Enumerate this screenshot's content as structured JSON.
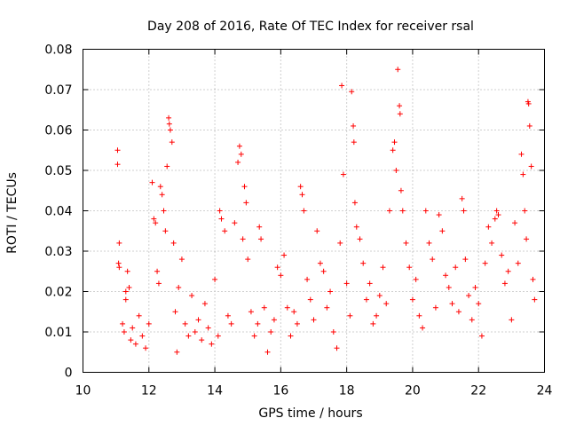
{
  "chart_data": {
    "type": "scatter",
    "title": "Day 208 of 2016, Rate Of TEC Index for receiver rsal",
    "xlabel": "GPS time / hours",
    "ylabel": "ROTI / TECUs",
    "xlim": [
      10,
      24
    ],
    "ylim": [
      0,
      0.08
    ],
    "x_ticks": [
      10,
      12,
      14,
      16,
      18,
      20,
      22,
      24
    ],
    "y_ticks": [
      0,
      0.01,
      0.02,
      0.03,
      0.04,
      0.05,
      0.06,
      0.07,
      0.08
    ],
    "x_tick_labels": [
      "10",
      "12",
      "14",
      "16",
      "18",
      "20",
      "22",
      "24"
    ],
    "y_tick_labels": [
      "0",
      "0.01",
      "0.02",
      "0.03",
      "0.04",
      "0.05",
      "0.06",
      "0.07",
      "0.08"
    ],
    "grid": true,
    "marker": "+",
    "color": "#ff0000",
    "series": [
      {
        "name": "ROTI",
        "points": [
          [
            11.05,
            0.055
          ],
          [
            11.05,
            0.0515
          ],
          [
            11.1,
            0.032
          ],
          [
            11.08,
            0.027
          ],
          [
            11.1,
            0.026
          ],
          [
            11.2,
            0.012
          ],
          [
            11.25,
            0.01
          ],
          [
            11.3,
            0.02
          ],
          [
            11.35,
            0.025
          ],
          [
            11.3,
            0.018
          ],
          [
            11.4,
            0.021
          ],
          [
            11.45,
            0.008
          ],
          [
            11.5,
            0.011
          ],
          [
            11.6,
            0.007
          ],
          [
            11.7,
            0.014
          ],
          [
            11.8,
            0.009
          ],
          [
            11.9,
            0.006
          ],
          [
            12.0,
            0.012
          ],
          [
            12.1,
            0.047
          ],
          [
            12.15,
            0.038
          ],
          [
            12.2,
            0.037
          ],
          [
            12.25,
            0.025
          ],
          [
            12.3,
            0.022
          ],
          [
            12.35,
            0.046
          ],
          [
            12.4,
            0.044
          ],
          [
            12.45,
            0.04
          ],
          [
            12.5,
            0.035
          ],
          [
            12.55,
            0.051
          ],
          [
            12.6,
            0.063
          ],
          [
            12.62,
            0.0615
          ],
          [
            12.65,
            0.06
          ],
          [
            12.7,
            0.057
          ],
          [
            12.75,
            0.032
          ],
          [
            12.8,
            0.015
          ],
          [
            12.85,
            0.005
          ],
          [
            12.9,
            0.021
          ],
          [
            13.0,
            0.028
          ],
          [
            13.1,
            0.012
          ],
          [
            13.2,
            0.009
          ],
          [
            13.3,
            0.019
          ],
          [
            13.4,
            0.01
          ],
          [
            13.5,
            0.013
          ],
          [
            13.6,
            0.008
          ],
          [
            13.7,
            0.017
          ],
          [
            13.8,
            0.011
          ],
          [
            13.9,
            0.007
          ],
          [
            14.0,
            0.023
          ],
          [
            14.1,
            0.009
          ],
          [
            14.15,
            0.04
          ],
          [
            14.2,
            0.038
          ],
          [
            14.3,
            0.035
          ],
          [
            14.4,
            0.014
          ],
          [
            14.5,
            0.012
          ],
          [
            14.6,
            0.037
          ],
          [
            14.7,
            0.052
          ],
          [
            14.75,
            0.056
          ],
          [
            14.8,
            0.054
          ],
          [
            14.85,
            0.033
          ],
          [
            14.9,
            0.046
          ],
          [
            14.95,
            0.042
          ],
          [
            15.0,
            0.028
          ],
          [
            15.1,
            0.015
          ],
          [
            15.2,
            0.009
          ],
          [
            15.3,
            0.012
          ],
          [
            15.35,
            0.036
          ],
          [
            15.4,
            0.033
          ],
          [
            15.5,
            0.016
          ],
          [
            15.6,
            0.005
          ],
          [
            15.7,
            0.01
          ],
          [
            15.8,
            0.013
          ],
          [
            15.9,
            0.026
          ],
          [
            16.0,
            0.024
          ],
          [
            16.1,
            0.029
          ],
          [
            16.2,
            0.016
          ],
          [
            16.3,
            0.009
          ],
          [
            16.4,
            0.015
          ],
          [
            16.5,
            0.012
          ],
          [
            16.6,
            0.046
          ],
          [
            16.65,
            0.044
          ],
          [
            16.7,
            0.04
          ],
          [
            16.8,
            0.023
          ],
          [
            16.9,
            0.018
          ],
          [
            17.0,
            0.013
          ],
          [
            17.1,
            0.035
          ],
          [
            17.2,
            0.027
          ],
          [
            17.3,
            0.025
          ],
          [
            17.4,
            0.016
          ],
          [
            17.5,
            0.02
          ],
          [
            17.6,
            0.01
          ],
          [
            17.7,
            0.006
          ],
          [
            17.8,
            0.032
          ],
          [
            17.85,
            0.071
          ],
          [
            17.9,
            0.049
          ],
          [
            18.0,
            0.022
          ],
          [
            18.1,
            0.014
          ],
          [
            18.15,
            0.0695
          ],
          [
            18.2,
            0.061
          ],
          [
            18.22,
            0.057
          ],
          [
            18.25,
            0.042
          ],
          [
            18.3,
            0.036
          ],
          [
            18.4,
            0.033
          ],
          [
            18.5,
            0.027
          ],
          [
            18.6,
            0.018
          ],
          [
            18.7,
            0.022
          ],
          [
            18.8,
            0.012
          ],
          [
            18.9,
            0.014
          ],
          [
            19.0,
            0.019
          ],
          [
            19.1,
            0.026
          ],
          [
            19.2,
            0.017
          ],
          [
            19.3,
            0.04
          ],
          [
            19.4,
            0.055
          ],
          [
            19.45,
            0.057
          ],
          [
            19.5,
            0.05
          ],
          [
            19.55,
            0.075
          ],
          [
            19.6,
            0.066
          ],
          [
            19.62,
            0.064
          ],
          [
            19.65,
            0.045
          ],
          [
            19.7,
            0.04
          ],
          [
            19.8,
            0.032
          ],
          [
            19.9,
            0.026
          ],
          [
            20.0,
            0.018
          ],
          [
            20.1,
            0.023
          ],
          [
            20.2,
            0.014
          ],
          [
            20.3,
            0.011
          ],
          [
            20.4,
            0.04
          ],
          [
            20.5,
            0.032
          ],
          [
            20.6,
            0.028
          ],
          [
            20.7,
            0.016
          ],
          [
            20.8,
            0.039
          ],
          [
            20.9,
            0.035
          ],
          [
            21.0,
            0.024
          ],
          [
            21.1,
            0.021
          ],
          [
            21.2,
            0.017
          ],
          [
            21.3,
            0.026
          ],
          [
            21.4,
            0.015
          ],
          [
            21.5,
            0.043
          ],
          [
            21.55,
            0.04
          ],
          [
            21.6,
            0.028
          ],
          [
            21.7,
            0.019
          ],
          [
            21.8,
            0.013
          ],
          [
            21.9,
            0.021
          ],
          [
            22.0,
            0.017
          ],
          [
            22.1,
            0.009
          ],
          [
            22.2,
            0.027
          ],
          [
            22.3,
            0.036
          ],
          [
            22.4,
            0.032
          ],
          [
            22.5,
            0.038
          ],
          [
            22.55,
            0.04
          ],
          [
            22.6,
            0.039
          ],
          [
            22.7,
            0.029
          ],
          [
            22.8,
            0.022
          ],
          [
            22.9,
            0.025
          ],
          [
            23.0,
            0.013
          ],
          [
            23.1,
            0.037
          ],
          [
            23.2,
            0.027
          ],
          [
            23.3,
            0.054
          ],
          [
            23.35,
            0.049
          ],
          [
            23.4,
            0.04
          ],
          [
            23.45,
            0.033
          ],
          [
            23.5,
            0.067
          ],
          [
            23.52,
            0.0665
          ],
          [
            23.55,
            0.061
          ],
          [
            23.6,
            0.051
          ],
          [
            23.65,
            0.023
          ],
          [
            23.7,
            0.018
          ]
        ]
      }
    ]
  }
}
